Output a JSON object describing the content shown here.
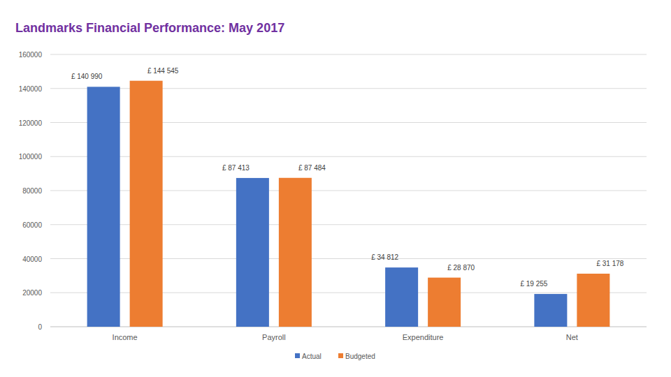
{
  "chart_data": {
    "type": "bar",
    "title": "Landmarks Financial Performance: May 2017",
    "categories": [
      "Income",
      "Payroll",
      "Expenditure",
      "Net"
    ],
    "series": [
      {
        "name": "Actual",
        "color": "#4472c4",
        "values": [
          140990,
          87413,
          34812,
          19255
        ],
        "value_labels": [
          "£ 140 990",
          "£ 87 413",
          "£ 34 812",
          "£ 19 255"
        ]
      },
      {
        "name": "Budgeted",
        "color": "#ed7d31",
        "values": [
          144545,
          87484,
          28870,
          31178
        ],
        "value_labels": [
          "£ 144 545",
          "£ 87 484",
          "£ 28 870",
          "£ 31 178"
        ]
      }
    ],
    "ylim": [
      0,
      160000
    ],
    "yticks": [
      0,
      20000,
      40000,
      60000,
      80000,
      100000,
      120000,
      140000,
      160000
    ],
    "grid": true,
    "legend": "bottom",
    "data_labels": true
  }
}
